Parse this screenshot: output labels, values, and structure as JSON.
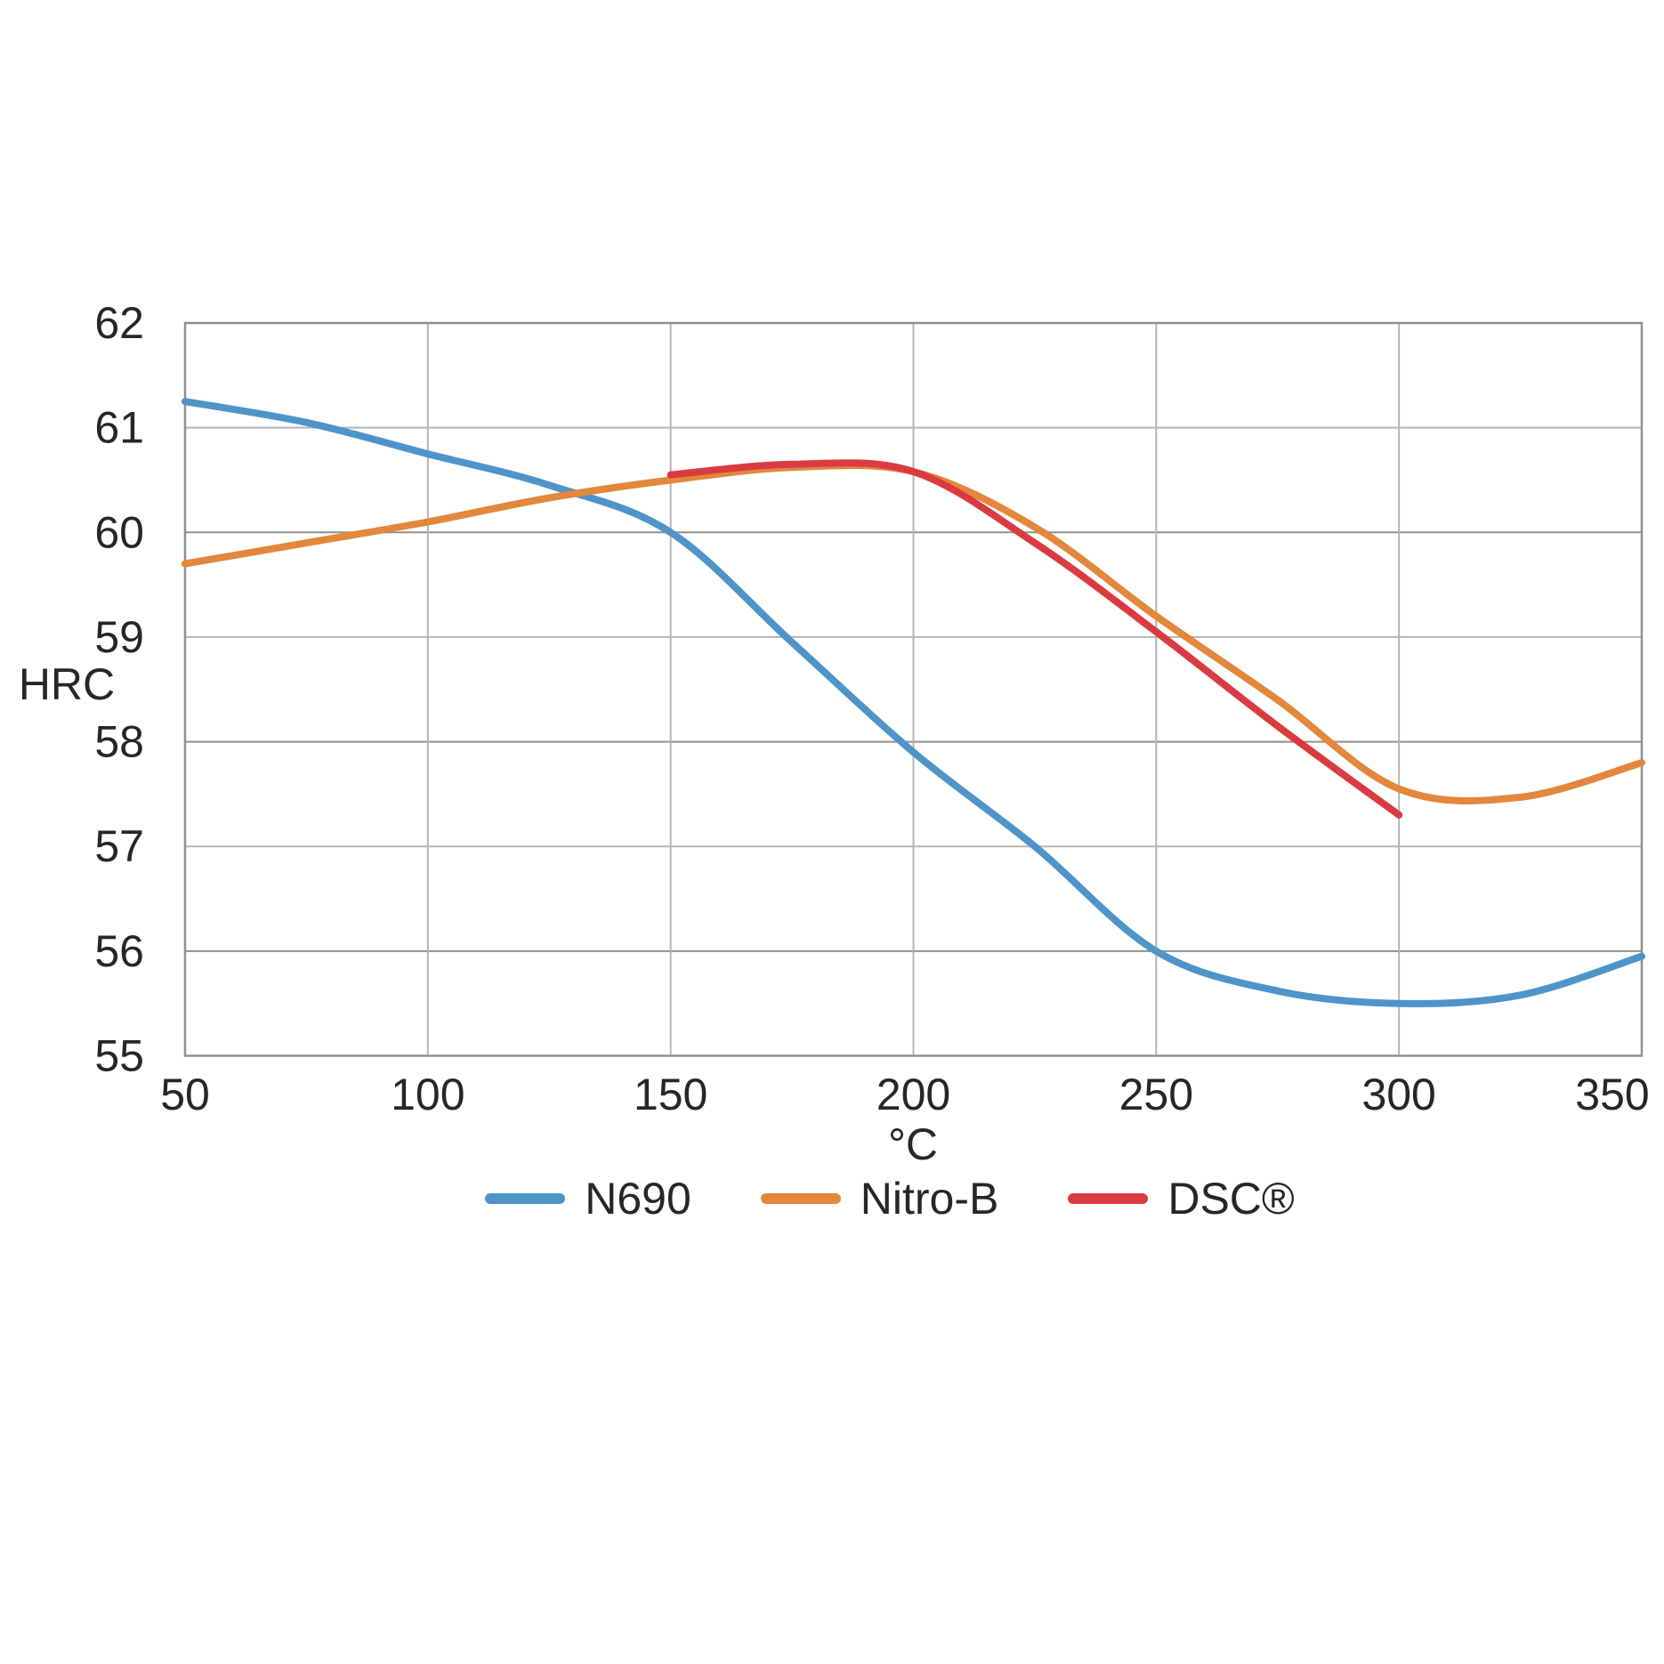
{
  "figure": {
    "background": "#ffffff",
    "text_color": "#262626",
    "grid_color_minor": "#b4b4b4",
    "grid_color_major": "#8f8f8f",
    "border_color": "#8f8f8f"
  },
  "chart_data": {
    "type": "line",
    "title": "",
    "xlabel": "°C",
    "ylabel": "HRC",
    "xlim": [
      50,
      350
    ],
    "ylim": [
      55,
      62
    ],
    "x_ticks": [
      50,
      100,
      150,
      200,
      250,
      300,
      350
    ],
    "y_ticks": [
      55,
      56,
      57,
      58,
      59,
      60,
      61,
      62
    ],
    "grid": true,
    "legend_position": "bottom",
    "series": [
      {
        "name": "N690",
        "color": "#4e94c8",
        "x": [
          50,
          75,
          100,
          125,
          150,
          175,
          200,
          225,
          250,
          275,
          300,
          325,
          350
        ],
        "values": [
          61.25,
          61.05,
          60.75,
          60.45,
          60.0,
          58.95,
          57.9,
          57.0,
          56.0,
          55.62,
          55.5,
          55.58,
          55.95
        ]
      },
      {
        "name": "Nitro-B",
        "color": "#e2873b",
        "x": [
          50,
          75,
          100,
          125,
          150,
          175,
          200,
          225,
          250,
          275,
          300,
          325,
          350
        ],
        "values": [
          59.7,
          59.9,
          60.1,
          60.33,
          60.5,
          60.62,
          60.58,
          60.05,
          59.2,
          58.4,
          57.55,
          57.47,
          57.8
        ]
      },
      {
        "name": "DSC®",
        "color": "#da3b42",
        "x": [
          150,
          175,
          200,
          225,
          250,
          275,
          300
        ],
        "values": [
          60.55,
          60.65,
          60.58,
          59.9,
          59.05,
          58.15,
          57.3
        ]
      }
    ]
  }
}
